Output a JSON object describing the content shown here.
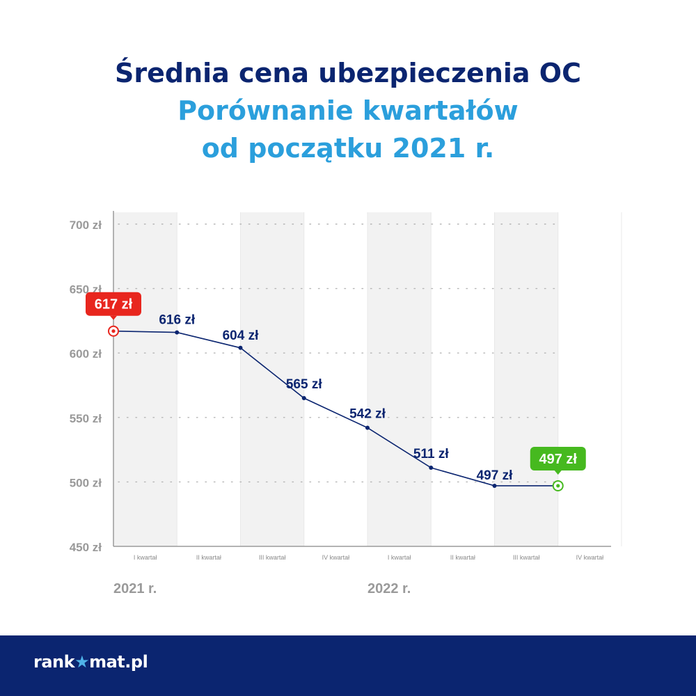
{
  "header": {
    "title": "Średnia cena ubezpieczenia OC",
    "subtitle_line1": "Porównanie kwartałów",
    "subtitle_line2": "od początku 2021 r."
  },
  "footer": {
    "brand_pre": "rank",
    "brand_star": "★",
    "brand_post": "mat.pl"
  },
  "colors": {
    "title": "#0b2570",
    "subtitle": "#2b9fdc",
    "line": "#0b2570",
    "start_badge": "#e8261e",
    "end_badge": "#46b91f",
    "axis_text": "#999999",
    "band": "#f2f2f2",
    "footer_bg": "#0b2570"
  },
  "chart_data": {
    "type": "line",
    "categories": [
      "I kwartał",
      "II kwartał",
      "III kwartał",
      "IV kwartał",
      "I kwartał",
      "II kwartał",
      "III kwartał",
      "IV kwartał"
    ],
    "years": [
      {
        "label": "2021 r.",
        "start_index": 0
      },
      {
        "label": "2022 r.",
        "start_index": 4
      }
    ],
    "values": [
      617,
      616,
      604,
      565,
      542,
      511,
      497,
      497
    ],
    "data_labels": [
      "617 zł",
      "616 zł",
      "604 zł",
      "565 zł",
      "542 zł",
      "511 zł",
      "497 zł",
      "497 zł"
    ],
    "highlight": {
      "start_index": 0,
      "end_index": 7
    },
    "y_ticks": [
      450,
      500,
      550,
      600,
      650,
      700
    ],
    "y_tick_labels": [
      "450 zł",
      "500 zł",
      "550 zł",
      "600 zł",
      "650 zł",
      "700 zł"
    ],
    "ylim": [
      450,
      705
    ],
    "grid": "dotted horizontal",
    "xlabel": "",
    "ylabel": ""
  }
}
